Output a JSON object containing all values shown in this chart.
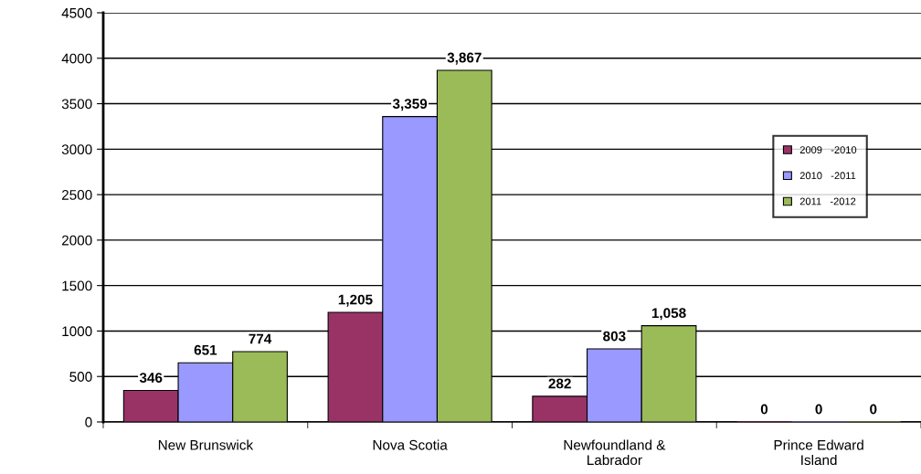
{
  "chart_data": {
    "type": "bar",
    "categories": [
      "New Brunswick",
      "Nova Scotia",
      "Newfoundland &\nLabrador",
      "Prince Edward\nIsland"
    ],
    "series": [
      {
        "name": "2009   -2010",
        "color": "#993366",
        "values": [
          346,
          1205,
          282,
          0
        ],
        "value_labels": [
          "346",
          "1,205",
          "282",
          "0"
        ]
      },
      {
        "name": "2010   -2011",
        "color": "#9999ff",
        "values": [
          651,
          3359,
          803,
          0
        ],
        "value_labels": [
          "651",
          "3,359",
          "803",
          "0"
        ]
      },
      {
        "name": "2011   -2012",
        "color": "#9bbb59",
        "values": [
          774,
          3867,
          1058,
          0
        ],
        "value_labels": [
          "774",
          "3,867",
          "1,058",
          "0"
        ]
      }
    ],
    "ylim": [
      0,
      4500
    ],
    "yticks": [
      0,
      500,
      1000,
      1500,
      2000,
      2500,
      3000,
      3500,
      4000,
      4500
    ],
    "grid": "y",
    "legend": "right"
  }
}
